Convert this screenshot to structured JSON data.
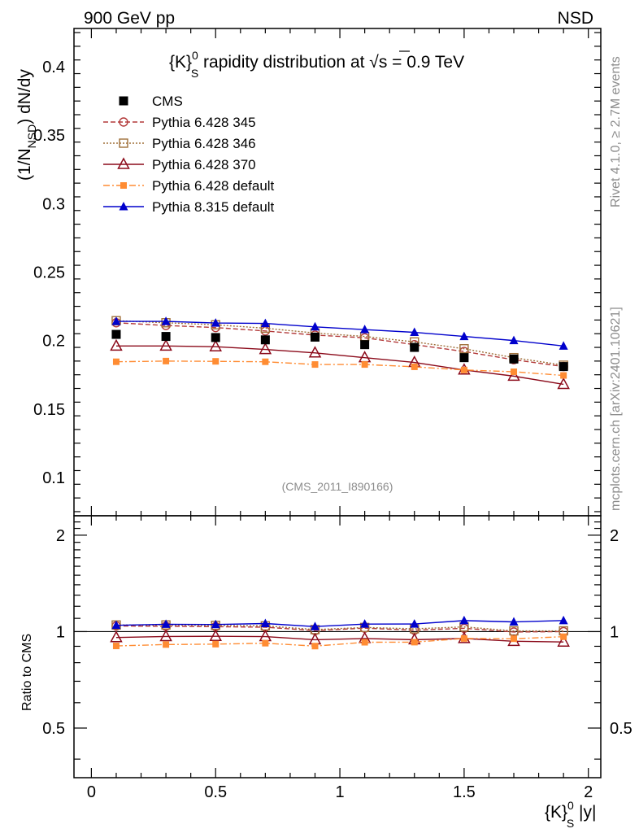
{
  "header": {
    "left": "900 GeV pp",
    "right": "NSD"
  },
  "side_text": {
    "rivet": "Rivet 4.1.0, ≥ 2.7M events",
    "site": "mcplots.cern.ch [arXiv:2401.10621]"
  },
  "watermark": "(CMS_2011_I890166)",
  "chart_data": {
    "type": "line",
    "title": "{K}_S^0 rapidity distribution at √s = 0.9 TeV",
    "title_main": "{K}",
    "title_sup": "0",
    "title_sub": "S",
    "title_rest": " rapidity distribution at √",
    "title_sqrt": "s",
    "title_end": " = 0.9 TeV",
    "xlabel": "{K}_S^0 |y|",
    "xlabel_main": "{K}",
    "xlabel_sup": "0",
    "xlabel_sub": "S",
    "xlabel_rest": " |y|",
    "ylabel": "(1/N_NSD) dN/dy",
    "ylabel_pre": "(1/N",
    "ylabel_sub": "NSD",
    "ylabel_post": ") dN/dy",
    "ratio_ylabel": "Ratio to CMS",
    "xlim": [
      -0.07,
      2.05
    ],
    "ylim": [
      0.072,
      0.428
    ],
    "ratio_ylim": [
      0.35,
      2.3
    ],
    "x_ticks": [
      "0",
      "0.5",
      "1",
      "1.5",
      "2"
    ],
    "x_tick_values": [
      0,
      0.5,
      1,
      1.5,
      2
    ],
    "y_ticks": [
      "0.1",
      "0.15",
      "0.2",
      "0.25",
      "0.3",
      "0.35",
      "0.4"
    ],
    "y_tick_values": [
      0.1,
      0.15,
      0.2,
      0.25,
      0.3,
      0.35,
      0.4
    ],
    "ratio_ticks": [
      "0.5",
      "1",
      "2"
    ],
    "ratio_tick_values": [
      0.5,
      1,
      2
    ],
    "x": [
      0.1,
      0.3,
      0.5,
      0.7,
      0.9,
      1.1,
      1.3,
      1.5,
      1.7,
      1.9
    ],
    "series": [
      {
        "name": "CMS",
        "color": "#000000",
        "marker": "square-filled",
        "dash": "none",
        "values": [
          0.2045,
          0.203,
          0.2022,
          0.2005,
          0.2025,
          0.197,
          0.195,
          0.1875,
          0.1865,
          0.181
        ]
      },
      {
        "name": "Pythia 6.428 345",
        "color": "#b33a3a",
        "marker": "circle-open",
        "dash": "6,3",
        "values": [
          0.213,
          0.211,
          0.2095,
          0.207,
          0.204,
          0.202,
          0.197,
          0.192,
          0.186,
          0.181
        ]
      },
      {
        "name": "Pythia 6.428 346",
        "color": "#a0703a",
        "marker": "square-open",
        "dash": "2,2",
        "values": [
          0.2145,
          0.213,
          0.2115,
          0.209,
          0.2055,
          0.203,
          0.199,
          0.194,
          0.1875,
          0.182
        ]
      },
      {
        "name": "Pythia 6.428 370",
        "color": "#8b0a1a",
        "marker": "triangle-open",
        "dash": "none",
        "values": [
          0.196,
          0.196,
          0.1955,
          0.1935,
          0.191,
          0.1875,
          0.184,
          0.1785,
          0.174,
          0.168
        ]
      },
      {
        "name": "Pythia 6.428 default",
        "color": "#ff8c33",
        "marker": "square-filled-small",
        "dash": "8,3,2,3",
        "values": [
          0.1845,
          0.185,
          0.1848,
          0.1845,
          0.1825,
          0.1825,
          0.1808,
          0.1785,
          0.1772,
          0.1745
        ]
      },
      {
        "name": "Pythia 8.315 default",
        "color": "#0000cc",
        "marker": "triangle-filled",
        "dash": "none",
        "values": [
          0.214,
          0.214,
          0.2128,
          0.2125,
          0.21,
          0.208,
          0.206,
          0.203,
          0.2,
          0.196
        ]
      }
    ]
  }
}
